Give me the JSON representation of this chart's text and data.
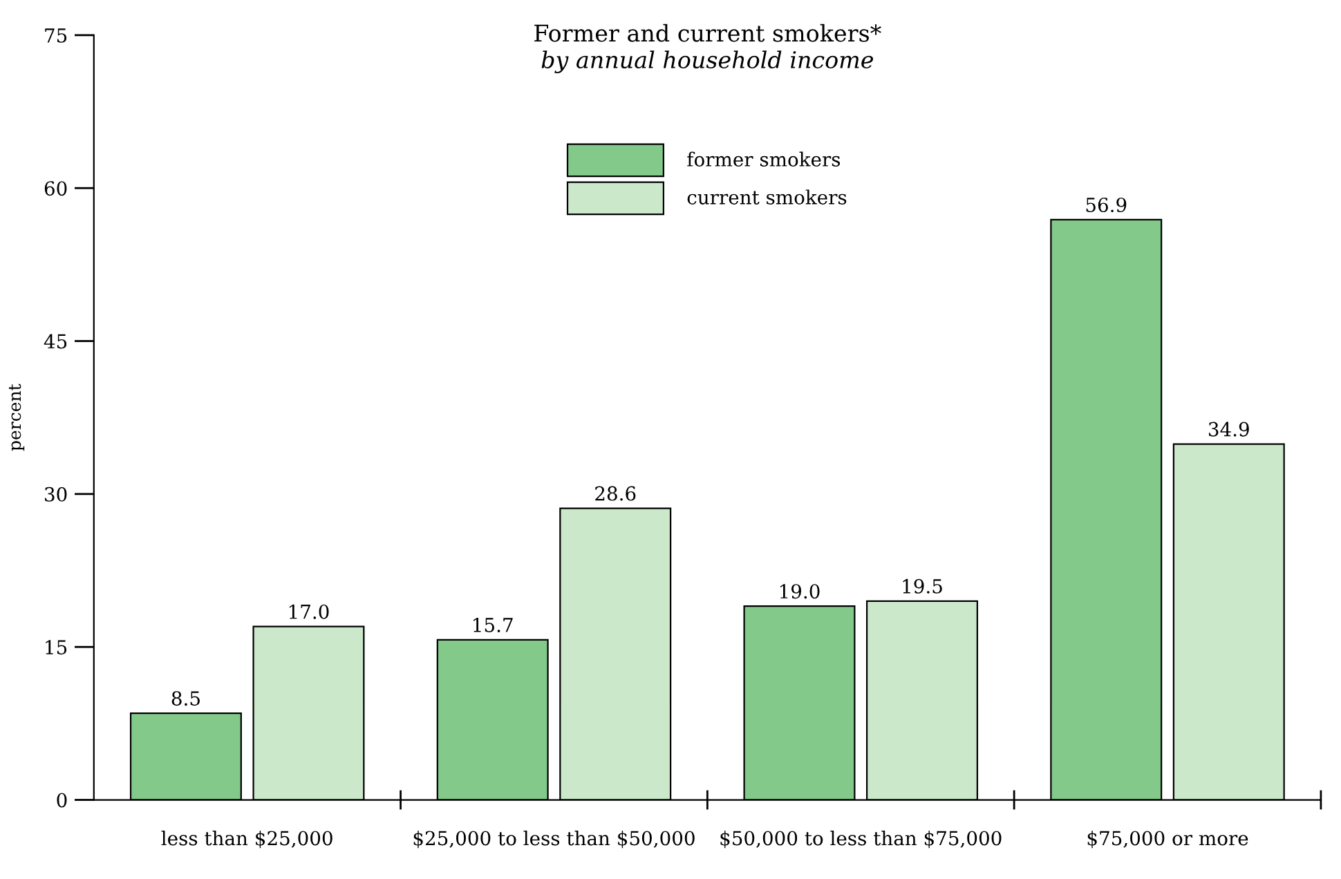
{
  "chart_data": {
    "type": "bar",
    "title": "Former and current smokers*",
    "subtitle": "by annual household income",
    "ylabel": "percent",
    "categories": [
      "less than $25,000",
      "$25,000 to less than $50,000",
      "$50,000 to less than $75,000",
      "$75,000 or more"
    ],
    "series": [
      {
        "name": "former smokers",
        "color": "#82c98a",
        "values": [
          8.5,
          15.7,
          19.0,
          56.9
        ],
        "value_labels": [
          "8.5",
          "15.7",
          "19.0",
          "56.9"
        ]
      },
      {
        "name": "current smokers",
        "color": "#cce8cb",
        "values": [
          17.0,
          28.6,
          19.5,
          34.9
        ],
        "value_labels": [
          "17.0",
          "28.6",
          "19.5",
          "34.9"
        ]
      }
    ],
    "ylim": [
      0,
      75
    ],
    "yticks": [
      0,
      15,
      30,
      45,
      60,
      75
    ],
    "grid": false,
    "legend": "top"
  }
}
